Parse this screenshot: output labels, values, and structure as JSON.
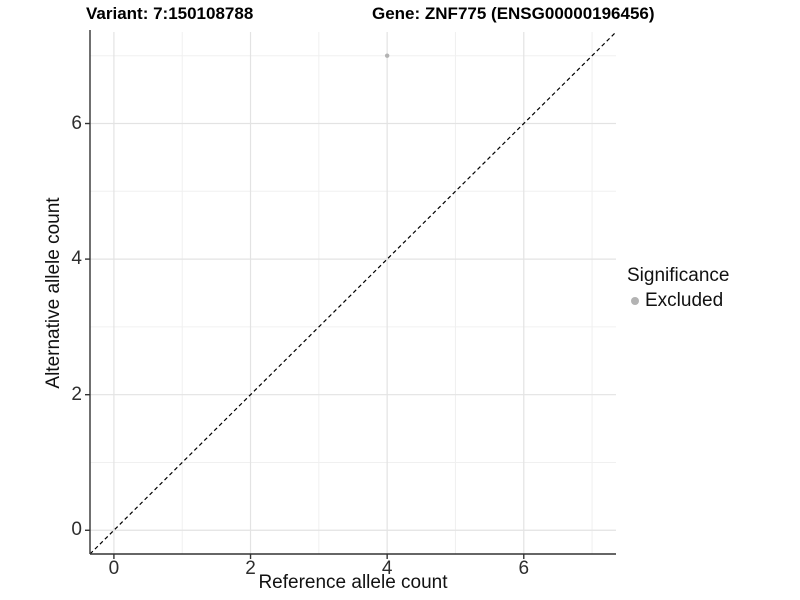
{
  "chart_data": {
    "type": "scatter",
    "title_left": "Variant: 7:150108788",
    "title_right": "Gene: ZNF775 (ENSG00000196456)",
    "xlabel": "Reference allele count",
    "ylabel": "Alternative allele count",
    "xlim": [
      -0.35,
      7.35
    ],
    "ylim": [
      -0.35,
      7.35
    ],
    "x_major_ticks": [
      0,
      2,
      4,
      6
    ],
    "y_major_ticks": [
      0,
      2,
      4,
      6
    ],
    "x_minor_ticks": [
      1,
      3,
      5,
      7
    ],
    "y_minor_ticks": [
      1,
      3,
      5,
      7
    ],
    "grid": "major+minor",
    "points": [
      {
        "x": 4,
        "y": 7,
        "series": "Excluded"
      }
    ],
    "reference_line": {
      "type": "identity",
      "slope": 1,
      "intercept": 0,
      "style": "dashed"
    },
    "legend": {
      "title": "Significance",
      "position": "right",
      "items": [
        {
          "label": "Excluded",
          "color": "#b3b3b3"
        }
      ]
    }
  },
  "colors": {
    "background": "#ffffff",
    "grid_major": "#e3e3e3",
    "grid_minor": "#f0f0f0",
    "axis_line": "#333333",
    "tick_mark": "#333333",
    "tick_text": "#2e2e2e",
    "dashed_line": "#000000",
    "point_excluded": "#b3b3b3"
  }
}
